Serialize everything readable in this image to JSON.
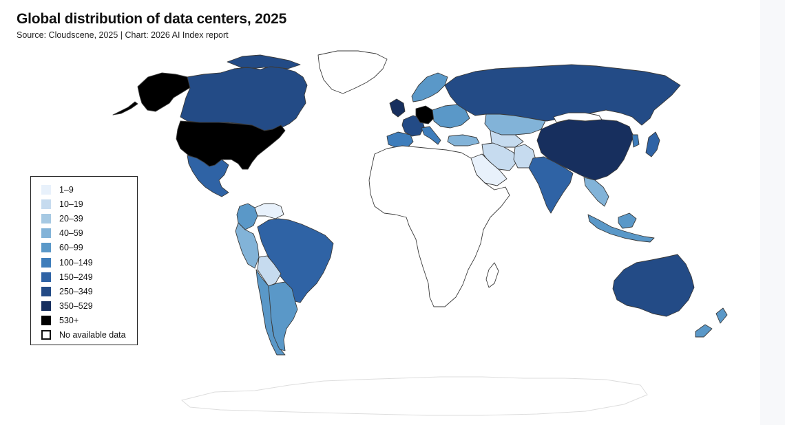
{
  "title": "Global distribution of data centers, 2025",
  "subtitle": "Source: Cloudscene, 2025 | Chart: 2026 AI Index report",
  "legend": [
    {
      "label": "1–9",
      "color": "#e8f1fb"
    },
    {
      "label": "10–19",
      "color": "#c6dbef"
    },
    {
      "label": "20–39",
      "color": "#a6c9e3"
    },
    {
      "label": "40–59",
      "color": "#82b3d8"
    },
    {
      "label": "60–99",
      "color": "#5a98c8"
    },
    {
      "label": "100–149",
      "color": "#3e7dbb"
    },
    {
      "label": "150–249",
      "color": "#2f63a5"
    },
    {
      "label": "250–349",
      "color": "#234b86"
    },
    {
      "label": "350–529",
      "color": "#172f5e"
    },
    {
      "label": "530+",
      "color": "#000000"
    },
    {
      "label": "No available data",
      "color": "#ffffff"
    }
  ],
  "regions": [
    {
      "name": "United States",
      "bin": "530+"
    },
    {
      "name": "Alaska",
      "bin": "530+"
    },
    {
      "name": "Canada",
      "bin": "250–349"
    },
    {
      "name": "Mexico",
      "bin": "150–249"
    },
    {
      "name": "Brazil",
      "bin": "150–249"
    },
    {
      "name": "Argentina",
      "bin": "60–99"
    },
    {
      "name": "Chile",
      "bin": "60–99"
    },
    {
      "name": "Colombia",
      "bin": "60–99"
    },
    {
      "name": "Peru",
      "bin": "40–59"
    },
    {
      "name": "Bolivia",
      "bin": "10–19"
    },
    {
      "name": "Venezuela",
      "bin": "1–9"
    },
    {
      "name": "Russia",
      "bin": "250–349"
    },
    {
      "name": "China",
      "bin": "350–529"
    },
    {
      "name": "India",
      "bin": "150–249"
    },
    {
      "name": "Kazakhstan",
      "bin": "40–59"
    },
    {
      "name": "Australia",
      "bin": "250–349"
    },
    {
      "name": "New Zealand",
      "bin": "60–99"
    },
    {
      "name": "Indonesia",
      "bin": "60–99"
    },
    {
      "name": "Japan",
      "bin": "150–249"
    },
    {
      "name": "United Kingdom",
      "bin": "350–529"
    },
    {
      "name": "Germany",
      "bin": "530+"
    },
    {
      "name": "France",
      "bin": "250–349"
    },
    {
      "name": "Spain",
      "bin": "100–149"
    },
    {
      "name": "Scandinavia",
      "bin": "60–99"
    },
    {
      "name": "Iran",
      "bin": "10–19"
    },
    {
      "name": "Africa",
      "bin": "No available data"
    },
    {
      "name": "Greenland",
      "bin": "No available data"
    },
    {
      "name": "Antarctica",
      "bin": "No available data"
    }
  ]
}
